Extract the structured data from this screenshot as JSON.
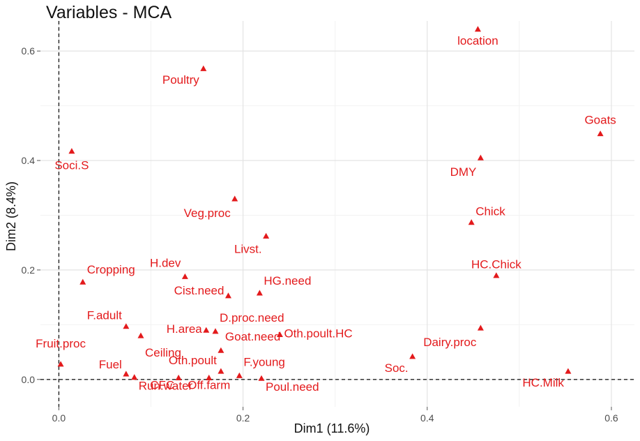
{
  "chart_data": {
    "type": "scatter",
    "title": "Variables - MCA",
    "xlabel": "Dim1 (11.6%)",
    "ylabel": "Dim2 (8.4%)",
    "xlim": [
      -0.02,
      0.625
    ],
    "ylim": [
      -0.05,
      0.655
    ],
    "x_ticks": [
      0.0,
      0.2,
      0.4,
      0.6
    ],
    "x_tick_labels": [
      "0.0",
      "0.2",
      "0.4",
      "0.6"
    ],
    "y_ticks": [
      0.0,
      0.2,
      0.4,
      0.6
    ],
    "y_tick_labels": [
      "0.0",
      "0.2",
      "0.4",
      "0.6"
    ],
    "grid": true,
    "reference_lines": {
      "x": 0,
      "y": 0,
      "style": "dashed"
    },
    "marker_color": "#e31a1c",
    "label_color": "#e31a1c",
    "points": [
      {
        "label": "location",
        "x": 0.455,
        "y": 0.64,
        "anchor": "middle",
        "dy": 22
      },
      {
        "label": "Poultry",
        "x": 0.157,
        "y": 0.568,
        "anchor": "end",
        "dy": 22
      },
      {
        "label": "Goats",
        "x": 0.588,
        "y": 0.449,
        "anchor": "middle",
        "dy": -14
      },
      {
        "label": "Soci.S",
        "x": 0.014,
        "y": 0.417,
        "anchor": "middle",
        "dy": 26
      },
      {
        "label": "DMY",
        "x": 0.458,
        "y": 0.405,
        "anchor": "end",
        "dy": 26
      },
      {
        "label": "Veg.proc",
        "x": 0.191,
        "y": 0.33,
        "anchor": "end",
        "dy": 26
      },
      {
        "label": "Chick",
        "x": 0.448,
        "y": 0.287,
        "anchor": "start",
        "dy": -10
      },
      {
        "label": "Livst.",
        "x": 0.225,
        "y": 0.262,
        "anchor": "end",
        "dy": 24
      },
      {
        "label": "HC.Chick",
        "x": 0.475,
        "y": 0.19,
        "anchor": "middle",
        "dy": -10
      },
      {
        "label": "Cropping",
        "x": 0.026,
        "y": 0.178,
        "anchor": "start",
        "dy": -12
      },
      {
        "label": "H.dev",
        "x": 0.137,
        "y": 0.188,
        "anchor": "end",
        "dy": -14
      },
      {
        "label": "HG.need",
        "x": 0.218,
        "y": 0.158,
        "anchor": "start",
        "dy": -12
      },
      {
        "label": "Cist.need",
        "x": 0.184,
        "y": 0.153,
        "anchor": "end",
        "dy": -2
      },
      {
        "label": "F.adult",
        "x": 0.073,
        "y": 0.097,
        "anchor": "end",
        "dy": -10
      },
      {
        "label": "D.proc.need",
        "x": 0.17,
        "y": 0.088,
        "anchor": "start",
        "dy": -14
      },
      {
        "label": "H.area",
        "x": 0.16,
        "y": 0.09,
        "anchor": "end",
        "dy": 4
      },
      {
        "label": "Dairy.proc",
        "x": 0.458,
        "y": 0.094,
        "anchor": "end",
        "dy": 26
      },
      {
        "label": "Oth.poult.HC",
        "x": 0.24,
        "y": 0.082,
        "anchor": "start",
        "dy": 4
      },
      {
        "label": "Goat.need",
        "x": 0.176,
        "y": 0.053,
        "anchor": "start",
        "dy": -14
      },
      {
        "label": "Fruit.proc",
        "x": 0.002,
        "y": 0.028,
        "anchor": "middle",
        "dy": -24
      },
      {
        "label": "Ceiling",
        "x": 0.089,
        "y": 0.08,
        "anchor": "start",
        "dy": 30
      },
      {
        "label": "Soc.",
        "x": 0.384,
        "y": 0.042,
        "anchor": "end",
        "dy": 22
      },
      {
        "label": "Fuel",
        "x": 0.073,
        "y": 0.01,
        "anchor": "end",
        "dy": -8
      },
      {
        "label": "Oth.poult",
        "x": 0.176,
        "y": 0.015,
        "anchor": "end",
        "dy": -10
      },
      {
        "label": "F.young",
        "x": 0.196,
        "y": 0.007,
        "anchor": "start",
        "dy": -14
      },
      {
        "label": "HC.Milk",
        "x": 0.553,
        "y": 0.015,
        "anchor": "end",
        "dy": 22
      },
      {
        "label": "Poul.need",
        "x": 0.22,
        "y": 0.002,
        "anchor": "start",
        "dy": 18
      },
      {
        "label": "Run.water",
        "x": 0.082,
        "y": 0.004,
        "anchor": "start",
        "dy": 18
      },
      {
        "label": "CFC",
        "x": 0.13,
        "y": 0.003,
        "anchor": "end",
        "dy": 16
      },
      {
        "label": "Off.farm",
        "x": 0.163,
        "y": 0.003,
        "anchor": "middle",
        "dy": 16
      }
    ]
  }
}
